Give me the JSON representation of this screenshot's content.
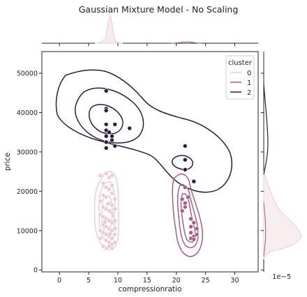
{
  "chart_data": {
    "type": "scatter",
    "title": "Gaussian Mixture Model - No Scaling",
    "xlabel": "compressionratio",
    "ylabel": "price",
    "xlim": [
      -3,
      34
    ],
    "ylim": [
      -500,
      55500
    ],
    "x_ticks": [
      0,
      5,
      10,
      15,
      20,
      25,
      30
    ],
    "y_ticks": [
      0,
      10000,
      20000,
      30000,
      40000,
      50000
    ],
    "x_tick_labels": [
      "0",
      "5",
      "10",
      "15",
      "20",
      "25",
      "30"
    ],
    "y_tick_labels": [
      "0",
      "10000",
      "20000",
      "30000",
      "40000",
      "50000"
    ],
    "marginal_y_offset_text": "1e−5",
    "grid": false,
    "legend": {
      "title": "cluster",
      "position": "top-right",
      "entries": [
        "0",
        "1",
        "2"
      ]
    },
    "colors": {
      "0": "#eacdd2",
      "1": "#a65e86",
      "2": "#2d1a3d"
    },
    "series": [
      {
        "name": "0",
        "points": [
          [
            7.0,
            24000
          ],
          [
            7.5,
            22000
          ],
          [
            8.0,
            24500
          ],
          [
            8.5,
            23500
          ],
          [
            9.0,
            24000
          ],
          [
            8.0,
            21000
          ],
          [
            8.5,
            20500
          ],
          [
            9.0,
            21500
          ],
          [
            7.5,
            19000
          ],
          [
            8.0,
            18500
          ],
          [
            9.0,
            19500
          ],
          [
            9.5,
            18000
          ],
          [
            7.0,
            17500
          ],
          [
            8.5,
            17000
          ],
          [
            9.0,
            16500
          ],
          [
            7.5,
            16000
          ],
          [
            8.0,
            15500
          ],
          [
            8.5,
            15000
          ],
          [
            9.0,
            14500
          ],
          [
            9.5,
            15500
          ],
          [
            7.0,
            14000
          ],
          [
            7.5,
            13500
          ],
          [
            8.0,
            13000
          ],
          [
            8.5,
            12500
          ],
          [
            9.0,
            12000
          ],
          [
            9.5,
            12500
          ],
          [
            7.5,
            11500
          ],
          [
            8.0,
            11000
          ],
          [
            8.5,
            10500
          ],
          [
            9.0,
            10000
          ],
          [
            9.5,
            10500
          ],
          [
            7.0,
            10000
          ],
          [
            7.5,
            9500
          ],
          [
            8.0,
            9000
          ],
          [
            8.5,
            8500
          ],
          [
            9.0,
            8000
          ],
          [
            9.5,
            9000
          ],
          [
            7.0,
            8000
          ],
          [
            8.0,
            7500
          ],
          [
            8.5,
            7000
          ],
          [
            9.0,
            6500
          ],
          [
            9.5,
            7000
          ],
          [
            7.5,
            6000
          ],
          [
            8.0,
            5500
          ],
          [
            9.0,
            5500
          ],
          [
            8.5,
            6000
          ],
          [
            9.2,
            13800
          ],
          [
            7.8,
            12200
          ],
          [
            8.7,
            9200
          ],
          [
            8.3,
            16800
          ]
        ]
      },
      {
        "name": "1",
        "points": [
          [
            21.5,
            21000
          ],
          [
            21.0,
            18000
          ],
          [
            21.5,
            17000
          ],
          [
            22.0,
            18500
          ],
          [
            21.5,
            16000
          ],
          [
            21.0,
            15000
          ],
          [
            22.5,
            13000
          ],
          [
            23.0,
            12000
          ],
          [
            22.5,
            11000
          ],
          [
            23.5,
            10500
          ],
          [
            22.5,
            9500
          ],
          [
            23.0,
            8500
          ],
          [
            22.5,
            8000
          ],
          [
            23.0,
            7800
          ],
          [
            23.5,
            9000
          ]
        ]
      },
      {
        "name": "2",
        "points": [
          [
            8.0,
            45500
          ],
          [
            8.0,
            41000
          ],
          [
            8.0,
            40500
          ],
          [
            8.0,
            37000
          ],
          [
            9.5,
            37000
          ],
          [
            8.0,
            35500
          ],
          [
            8.5,
            35000
          ],
          [
            12.0,
            36000
          ],
          [
            8.0,
            34000
          ],
          [
            9.0,
            34000
          ],
          [
            9.0,
            33000
          ],
          [
            8.0,
            32500
          ],
          [
            9.5,
            31500
          ],
          [
            8.0,
            31000
          ],
          [
            21.5,
            31500
          ],
          [
            21.5,
            28000
          ],
          [
            21.5,
            25500
          ],
          [
            23.0,
            22500
          ]
        ]
      }
    ]
  }
}
